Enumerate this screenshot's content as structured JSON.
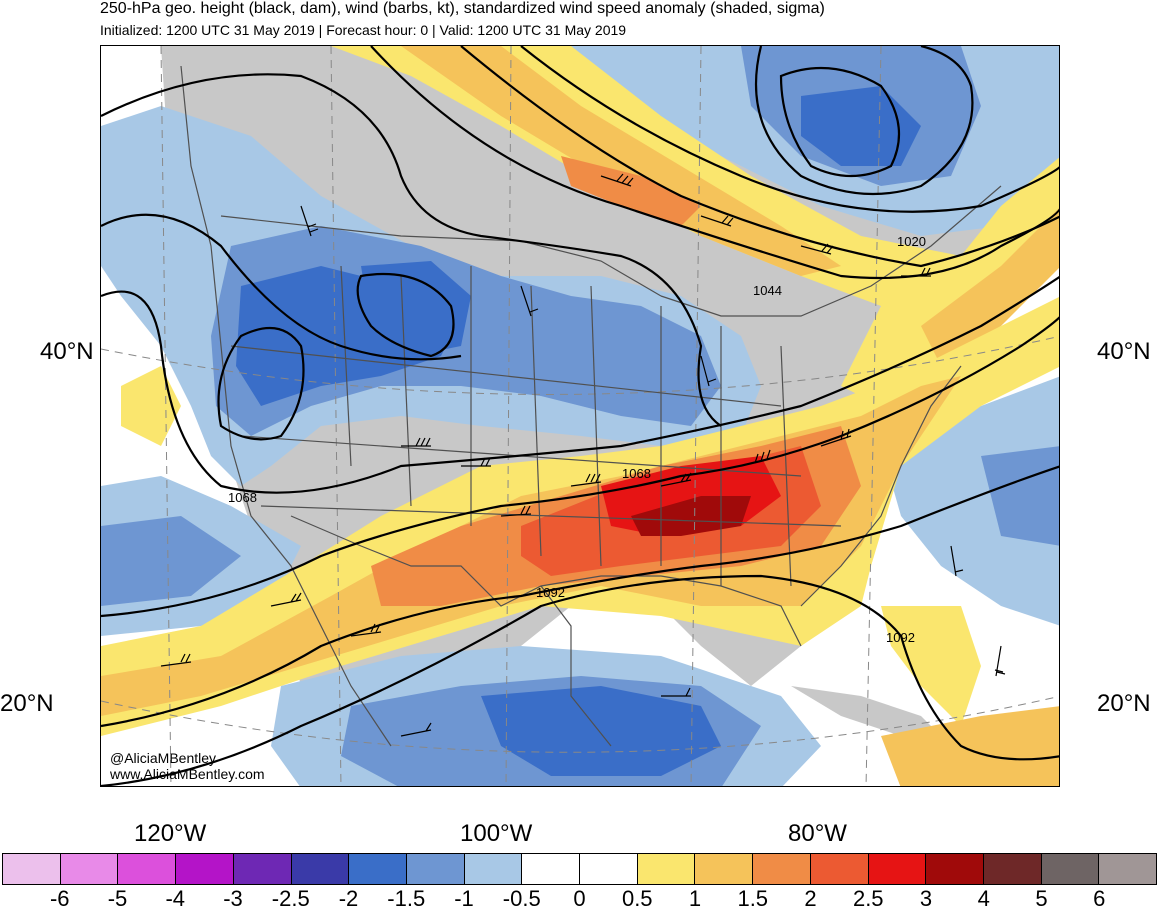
{
  "header": {
    "title": "250-hPa geo. height (black, dam), wind (barbs, kt), standardized wind speed anomaly (shaded, sigma)",
    "subtitle": "Initialized: 1200 UTC 31 May 2019 | Forecast hour: 0 | Valid: 1200 UTC 31 May 2019"
  },
  "axes": {
    "lat_labels": [
      "40°N",
      "20°N"
    ],
    "lon_labels": [
      "120°W",
      "100°W",
      "80°W"
    ]
  },
  "contour_labels": [
    "1020",
    "1044",
    "1068",
    "1068",
    "1092",
    "1092"
  ],
  "credits": {
    "handle": "@AliciaMBentley",
    "site": "www.AliciaMBentley.com"
  },
  "colorbar": {
    "labels": [
      "-6",
      "-5",
      "-4",
      "-3",
      "-2.5",
      "-2",
      "-1.5",
      "-1",
      "-0.5",
      "0",
      "0.5",
      "1",
      "1.5",
      "2",
      "2.5",
      "3",
      "4",
      "5",
      "6"
    ],
    "colors": [
      "#ecc0ec",
      "#e88ae8",
      "#dc50dc",
      "#b414c8",
      "#6e28b4",
      "#3a3aa8",
      "#3a6ec8",
      "#6e96d2",
      "#a8c8e6",
      "#ffffff",
      "#ffffff",
      "#fae66e",
      "#f5c35a",
      "#f08c46",
      "#ec5a32",
      "#e61414",
      "#a00a0a",
      "#6e2828",
      "#6e6464",
      "#a09696"
    ]
  },
  "colors": {
    "land_neutral": "#c8c8c8",
    "ocean_neutral": "#ffffff",
    "contour": "#000000",
    "borders": "#505050"
  }
}
